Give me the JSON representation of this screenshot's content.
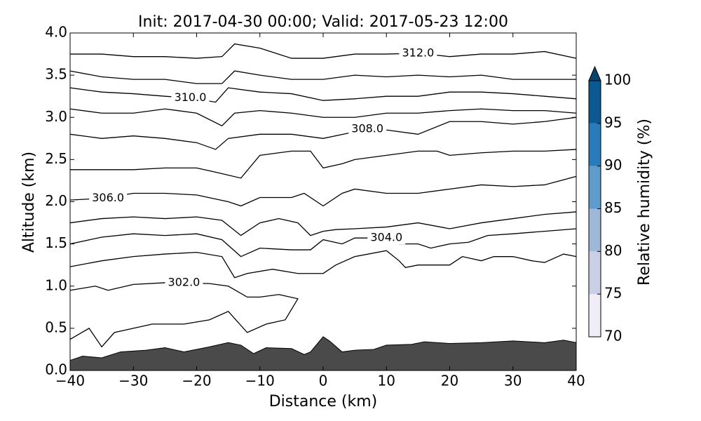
{
  "chart_data": {
    "type": "contour",
    "title": "Init: 2017-04-30 00:00; Valid: 2017-05-23 12:00",
    "xlabel": "Distance (km)",
    "ylabel": "Altitude (km)",
    "xlim": [
      -40,
      40
    ],
    "ylim": [
      0,
      4
    ],
    "xticks": [
      {
        "value": -40,
        "label": "−40"
      },
      {
        "value": -30,
        "label": "−30"
      },
      {
        "value": -20,
        "label": "−20"
      },
      {
        "value": -10,
        "label": "−10"
      },
      0,
      10,
      20,
      30,
      40
    ],
    "yticks": [
      {
        "value": 0,
        "label": "0.0"
      },
      {
        "value": 0.5,
        "label": "0.5"
      },
      {
        "value": 1,
        "label": "1.0"
      },
      {
        "value": 1.5,
        "label": "1.5"
      },
      {
        "value": 2,
        "label": "2.0"
      },
      {
        "value": 2.5,
        "label": "2.5"
      },
      {
        "value": 3,
        "label": "3.0"
      },
      {
        "value": 3.5,
        "label": "3.5"
      },
      {
        "value": 4,
        "label": "4.0"
      }
    ],
    "line_color": "#000000",
    "terrain": {
      "color": "#4a4a4a",
      "x": [
        -40,
        -38,
        -35,
        -32,
        -28,
        -25,
        -22,
        -18,
        -15,
        -13,
        -11,
        -9,
        -5,
        -3,
        -2,
        0,
        1,
        3,
        5,
        8,
        10,
        14,
        16,
        20,
        25,
        30,
        35,
        38,
        40
      ],
      "values": [
        0.12,
        0.17,
        0.15,
        0.22,
        0.24,
        0.27,
        0.22,
        0.28,
        0.33,
        0.3,
        0.2,
        0.27,
        0.26,
        0.19,
        0.22,
        0.4,
        0.35,
        0.22,
        0.24,
        0.25,
        0.3,
        0.31,
        0.34,
        0.32,
        0.33,
        0.35,
        0.33,
        0.36,
        0.33
      ]
    },
    "contours": [
      {
        "x": [
          -40,
          -37,
          -35,
          -33,
          -30,
          -27,
          -22,
          -18,
          -15,
          -12,
          -9,
          -6,
          -4,
          -7,
          -10,
          -12,
          -15,
          -18,
          -25,
          -30,
          -34,
          -36,
          -40
        ],
        "values": [
          0.37,
          0.5,
          0.28,
          0.45,
          0.5,
          0.55,
          0.55,
          0.6,
          0.7,
          0.45,
          0.55,
          0.6,
          0.85,
          0.9,
          0.87,
          0.87,
          1.0,
          1.03,
          1.04,
          1.02,
          0.95,
          1.0,
          0.95
        ]
      },
      {
        "x": [
          -40,
          -35,
          -30,
          -25,
          -20,
          -16,
          -14,
          -12,
          -8,
          -4,
          0,
          2,
          5,
          10,
          12,
          13,
          15,
          20,
          22,
          25,
          27,
          30,
          33,
          35,
          38,
          40
        ],
        "values": [
          1.23,
          1.3,
          1.35,
          1.38,
          1.4,
          1.35,
          1.1,
          1.15,
          1.2,
          1.15,
          1.15,
          1.25,
          1.35,
          1.42,
          1.3,
          1.22,
          1.25,
          1.25,
          1.35,
          1.3,
          1.35,
          1.35,
          1.3,
          1.28,
          1.38,
          1.35
        ]
      },
      {
        "x": [
          -40,
          -35,
          -30,
          -25,
          -20,
          -16,
          -13,
          -10,
          -5,
          -2,
          0,
          3,
          5,
          9,
          12,
          15,
          17,
          20,
          23,
          26,
          30,
          35,
          40
        ],
        "values": [
          1.5,
          1.58,
          1.62,
          1.6,
          1.62,
          1.55,
          1.35,
          1.45,
          1.43,
          1.43,
          1.55,
          1.5,
          1.57,
          1.57,
          1.5,
          1.5,
          1.45,
          1.5,
          1.52,
          1.6,
          1.62,
          1.65,
          1.68
        ]
      },
      {
        "x": [
          -40,
          -35,
          -30,
          -25,
          -20,
          -16,
          -13,
          -10,
          -7,
          -4,
          -2,
          0,
          2,
          5,
          10,
          15,
          20,
          25,
          30,
          35,
          40
        ],
        "values": [
          1.75,
          1.8,
          1.82,
          1.8,
          1.82,
          1.78,
          1.6,
          1.75,
          1.8,
          1.75,
          1.6,
          1.65,
          1.67,
          1.68,
          1.7,
          1.75,
          1.68,
          1.75,
          1.8,
          1.85,
          1.88
        ]
      },
      {
        "x": [
          -40,
          -35,
          -30,
          -25,
          -20,
          -15,
          -13,
          -10,
          -5,
          -3,
          0,
          3,
          5,
          10,
          15,
          20,
          25,
          30,
          35,
          40
        ],
        "values": [
          2.02,
          2.04,
          2.1,
          2.1,
          2.08,
          2.0,
          1.95,
          2.05,
          2.05,
          2.1,
          1.95,
          2.1,
          2.15,
          2.1,
          2.1,
          2.15,
          2.2,
          2.18,
          2.2,
          2.3
        ]
      },
      {
        "x": [
          -40,
          -35,
          -30,
          -25,
          -20,
          -17,
          -13,
          -10,
          -5,
          -2,
          0,
          3,
          5,
          10,
          15,
          18,
          20,
          25,
          30,
          35,
          40
        ],
        "values": [
          2.38,
          2.38,
          2.38,
          2.4,
          2.4,
          2.35,
          2.28,
          2.55,
          2.6,
          2.6,
          2.4,
          2.45,
          2.5,
          2.55,
          2.6,
          2.6,
          2.55,
          2.58,
          2.6,
          2.6,
          2.62
        ]
      },
      {
        "x": [
          -40,
          -35,
          -30,
          -25,
          -20,
          -17,
          -15,
          -10,
          -5,
          0,
          7,
          10,
          15,
          20,
          25,
          30,
          35,
          40
        ],
        "values": [
          2.8,
          2.75,
          2.78,
          2.75,
          2.7,
          2.62,
          2.75,
          2.8,
          2.8,
          2.75,
          2.86,
          2.85,
          2.8,
          2.95,
          2.95,
          2.92,
          2.95,
          3.0
        ]
      },
      {
        "x": [
          -40,
          -35,
          -30,
          -25,
          -20,
          -16,
          -14,
          -10,
          -5,
          0,
          5,
          10,
          15,
          20,
          25,
          30,
          35,
          40
        ],
        "values": [
          3.1,
          3.05,
          3.05,
          3.1,
          3.05,
          2.9,
          3.05,
          3.08,
          3.05,
          3.0,
          3.0,
          3.05,
          3.05,
          3.08,
          3.1,
          3.08,
          3.08,
          3.05
        ]
      },
      {
        "x": [
          -40,
          -35,
          -30,
          -25,
          -21,
          -17,
          -15,
          -10,
          -5,
          0,
          5,
          10,
          15,
          20,
          25,
          30,
          35,
          40
        ],
        "values": [
          3.35,
          3.3,
          3.28,
          3.25,
          3.23,
          3.18,
          3.35,
          3.3,
          3.28,
          3.2,
          3.22,
          3.25,
          3.25,
          3.3,
          3.3,
          3.28,
          3.25,
          3.22
        ]
      },
      {
        "x": [
          -40,
          -35,
          -30,
          -25,
          -20,
          -16,
          -14,
          -10,
          -5,
          0,
          5,
          10,
          15,
          20,
          25,
          30,
          35,
          40
        ],
        "values": [
          3.55,
          3.48,
          3.45,
          3.45,
          3.4,
          3.4,
          3.55,
          3.5,
          3.45,
          3.45,
          3.5,
          3.48,
          3.5,
          3.48,
          3.5,
          3.45,
          3.45,
          3.45
        ]
      },
      {
        "x": [
          -40,
          -35,
          -30,
          -25,
          -20,
          -16,
          -14,
          -10,
          -5,
          0,
          5,
          10,
          15,
          20,
          25,
          30,
          35,
          40
        ],
        "values": [
          3.75,
          3.75,
          3.72,
          3.72,
          3.7,
          3.72,
          3.87,
          3.82,
          3.7,
          3.7,
          3.75,
          3.75,
          3.76,
          3.72,
          3.75,
          3.75,
          3.78,
          3.7
        ]
      }
    ],
    "contour_labels": [
      {
        "label": "302.0",
        "x": -22,
        "y": 1.04
      },
      {
        "label": "304.0",
        "x": 10,
        "y": 1.57
      },
      {
        "label": "306.0",
        "x": -34,
        "y": 2.04
      },
      {
        "label": "308.0",
        "x": 7,
        "y": 2.86
      },
      {
        "label": "310.0",
        "x": -21,
        "y": 3.23
      },
      {
        "label": "312.0",
        "x": 15,
        "y": 3.76
      }
    ],
    "colorbar": {
      "label": "Relative humidity (%)",
      "ticks": [
        70,
        75,
        80,
        85,
        90,
        95,
        100
      ],
      "colors": [
        "#efedf5",
        "#cbcfe6",
        "#9fb8d9",
        "#5f9ccb",
        "#2a7bba",
        "#0a5a91"
      ],
      "extend_color": "#08456e"
    }
  }
}
